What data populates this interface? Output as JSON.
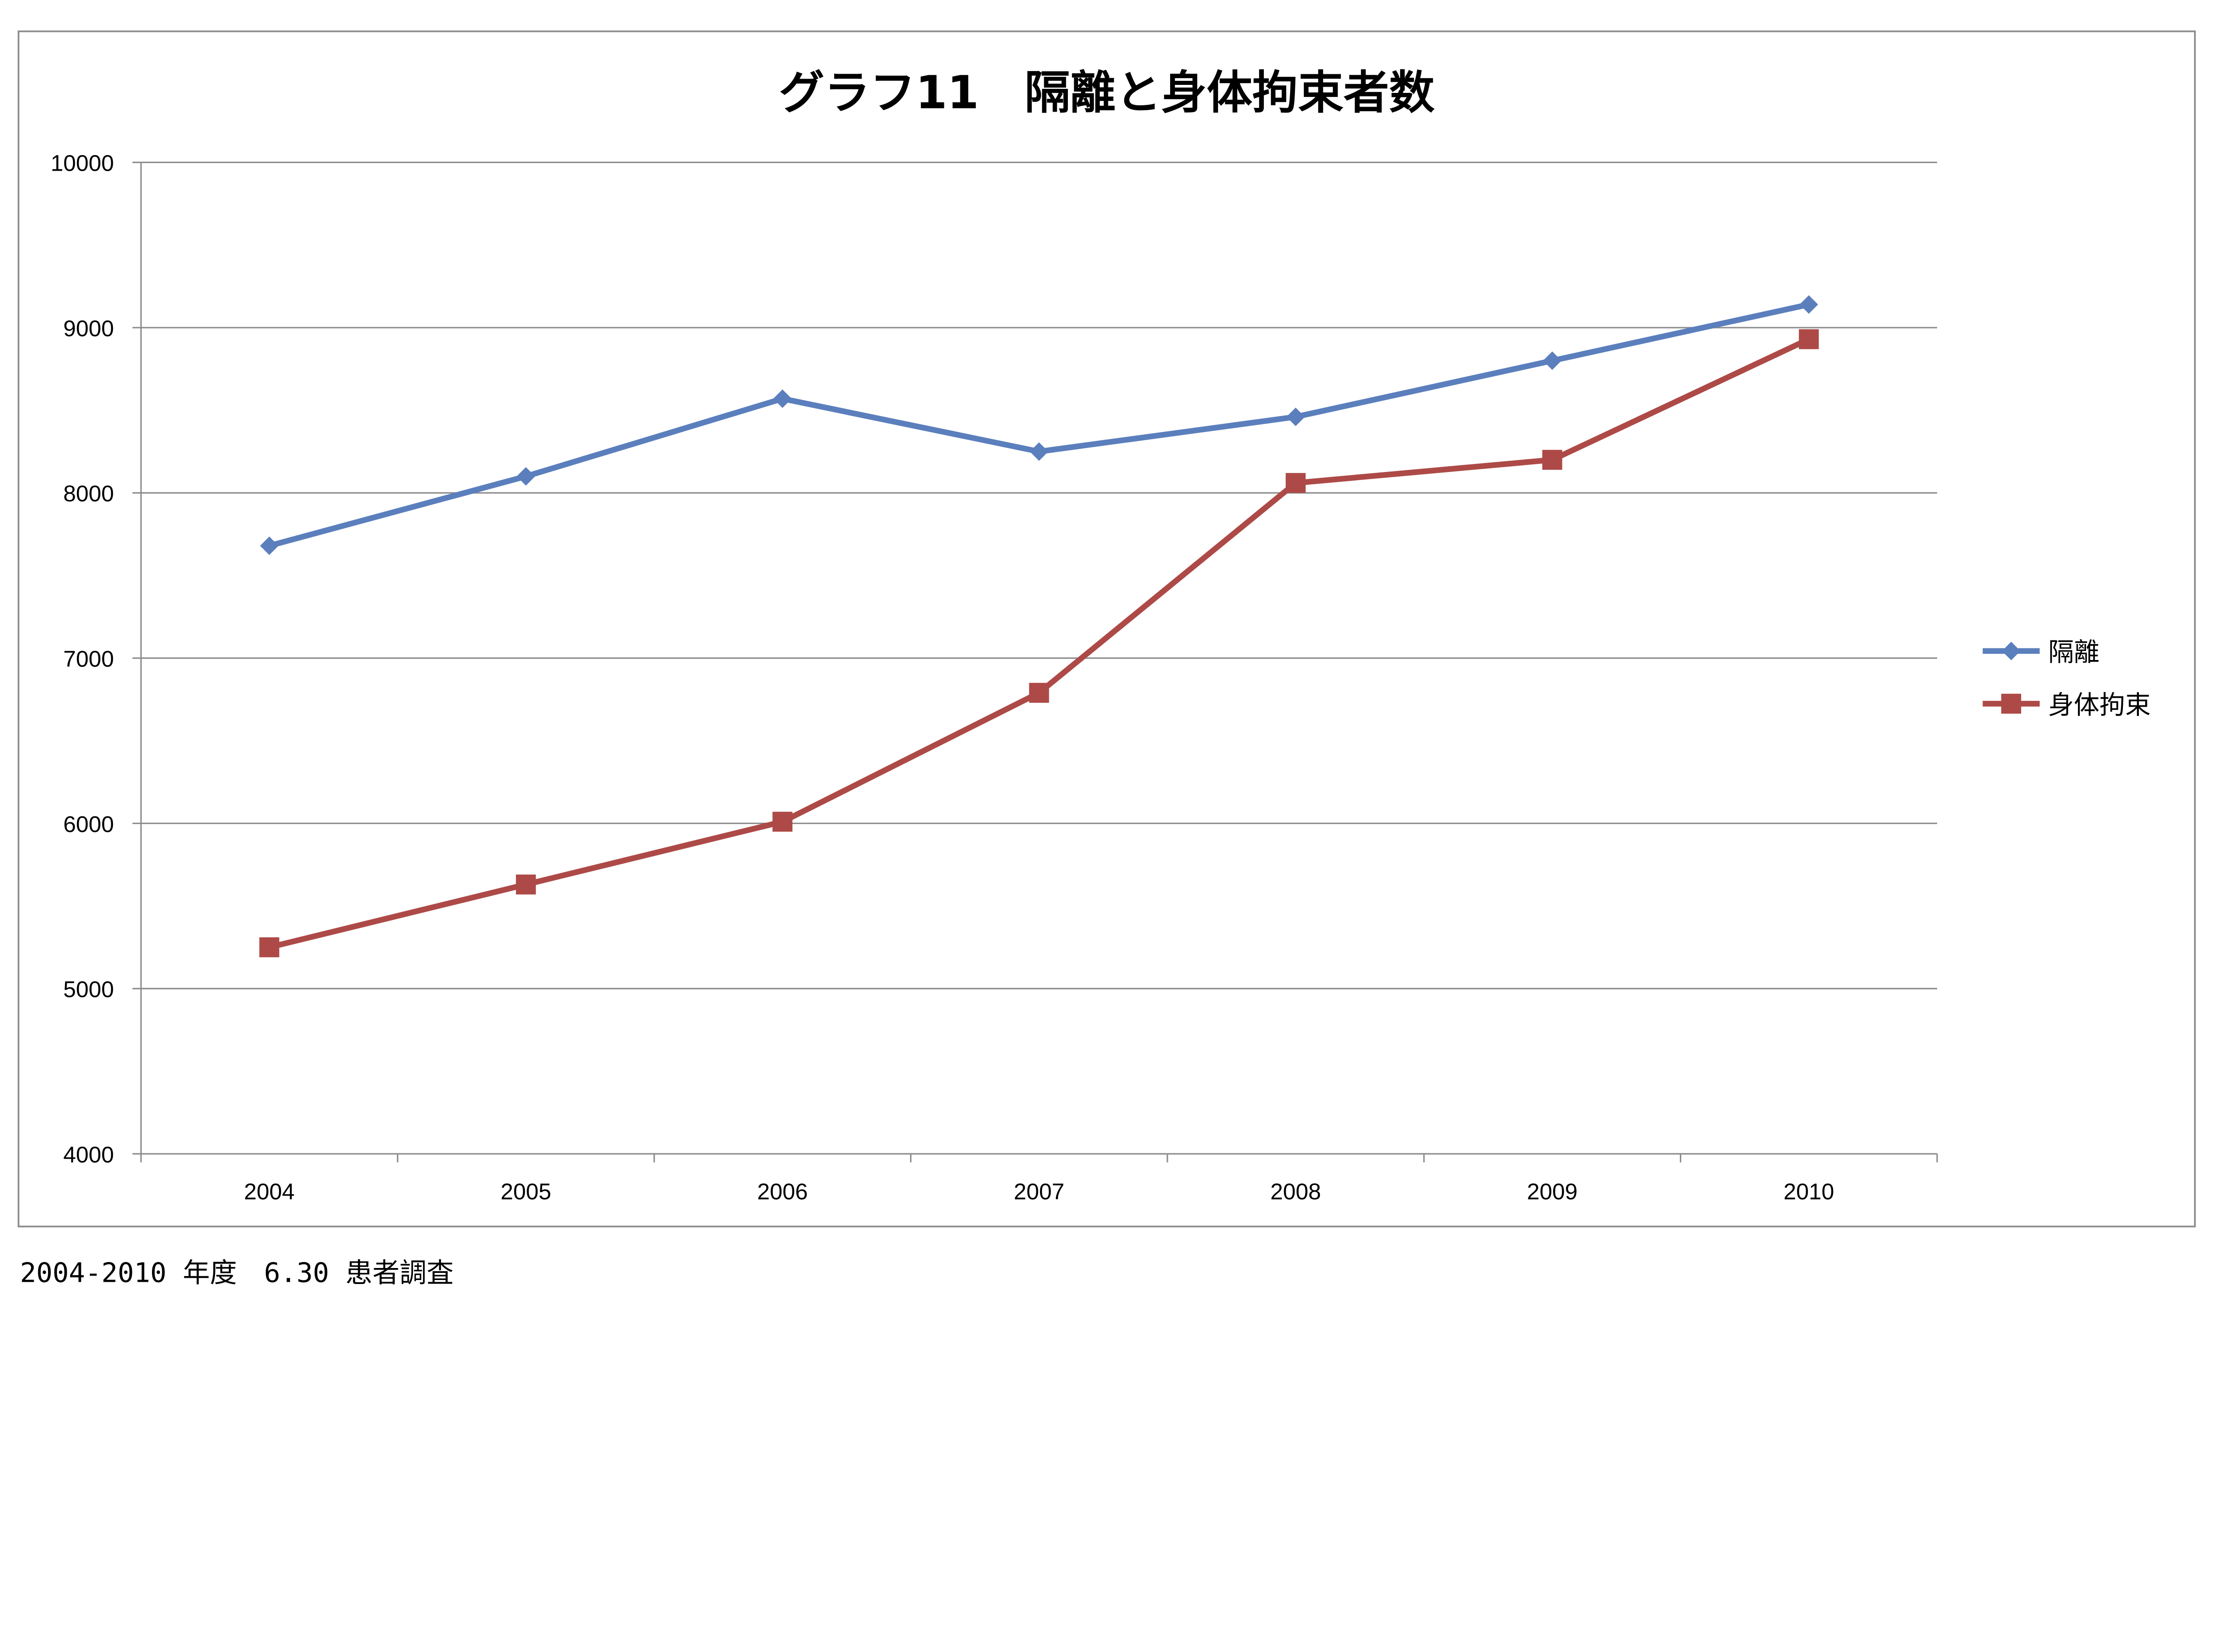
{
  "chart_data": {
    "type": "line",
    "title": "グラフ11　隔離と身体拘束者数",
    "xlabel": "",
    "ylabel": "",
    "categories": [
      "2004",
      "2005",
      "2006",
      "2007",
      "2008",
      "2009",
      "2010"
    ],
    "ylim": [
      4000,
      10000
    ],
    "yticks": [
      4000,
      5000,
      6000,
      7000,
      8000,
      9000,
      10000
    ],
    "grid": true,
    "legend_position": "right",
    "series": [
      {
        "name": "隔離",
        "color": "#5b7fbd",
        "marker": "diamond",
        "values": [
          7680,
          8100,
          8570,
          8250,
          8460,
          8800,
          9140
        ]
      },
      {
        "name": "身体拘束",
        "color": "#ad4a47",
        "marker": "square",
        "values": [
          5250,
          5630,
          6010,
          6790,
          8060,
          8200,
          8930
        ]
      }
    ]
  },
  "footnote": "2004-2010 年度　6.30 患者調査"
}
